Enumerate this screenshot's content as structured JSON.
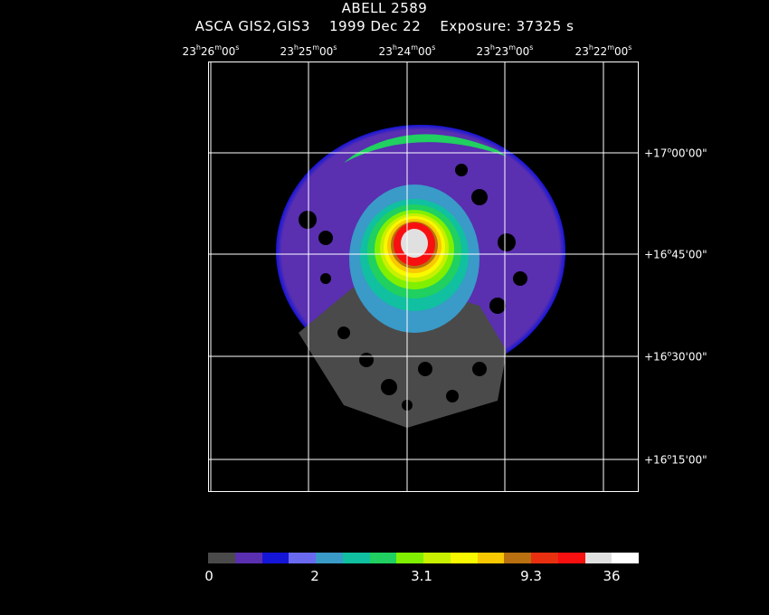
{
  "header": {
    "title": "ABELL 2589",
    "subtitle": "ASCA GIS2,GIS3    1999 Dec 22    Exposure: 37325 s"
  },
  "ra_labels": [
    {
      "h": "23",
      "m": "26",
      "s": "00"
    },
    {
      "h": "23",
      "m": "25",
      "s": "00"
    },
    {
      "h": "23",
      "m": "24",
      "s": "00"
    },
    {
      "h": "23",
      "m": "23",
      "s": "00"
    },
    {
      "h": "23",
      "m": "22",
      "s": "00"
    }
  ],
  "dec_labels": [
    {
      "d": "+17",
      "m": "00",
      "s": "00"
    },
    {
      "d": "+16",
      "m": "45",
      "s": "00"
    },
    {
      "d": "+16",
      "m": "30",
      "s": "00"
    },
    {
      "d": "+16",
      "m": "15",
      "s": "00"
    }
  ],
  "colorbar": {
    "colors": [
      "#4a4a4a",
      "#5a2fb0",
      "#1515d8",
      "#6a6af0",
      "#3a9ac8",
      "#10c0a0",
      "#20d060",
      "#80f000",
      "#c8f000",
      "#f8f800",
      "#f8c800",
      "#b87010",
      "#e83010",
      "#f81010",
      "#e0e0e0",
      "#ffffff"
    ],
    "labels": [
      "0",
      "2",
      "3.1",
      "9.3",
      "36"
    ]
  }
}
